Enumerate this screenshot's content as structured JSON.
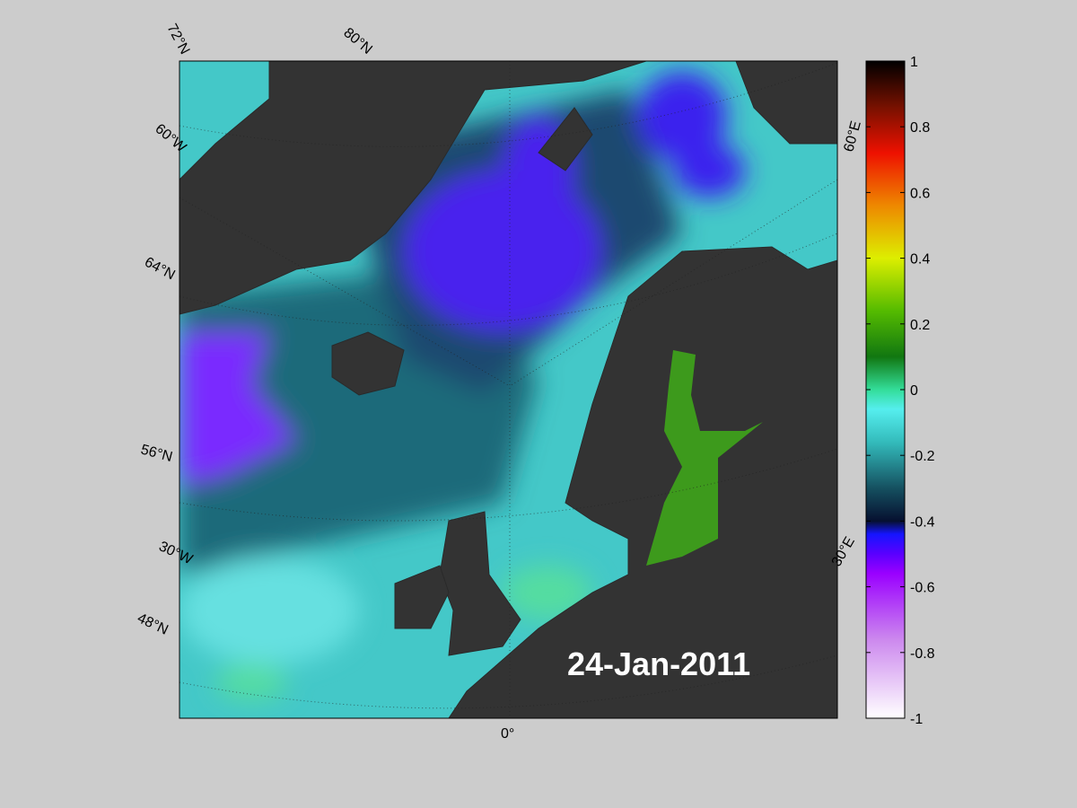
{
  "map": {
    "date_label": "24-Jan-2011",
    "grid_labels": [
      "72°N",
      "80°N",
      "60°W",
      "64°N",
      "56°N",
      "30°W",
      "48°N",
      "0°",
      "30°E",
      "60°E"
    ],
    "colorbar": {
      "range": [
        -1,
        1
      ],
      "ticks": [
        1,
        0.8,
        0.6,
        0.4,
        0.2,
        0,
        -0.2,
        -0.4,
        -0.6,
        -0.8,
        -1
      ]
    }
  }
}
